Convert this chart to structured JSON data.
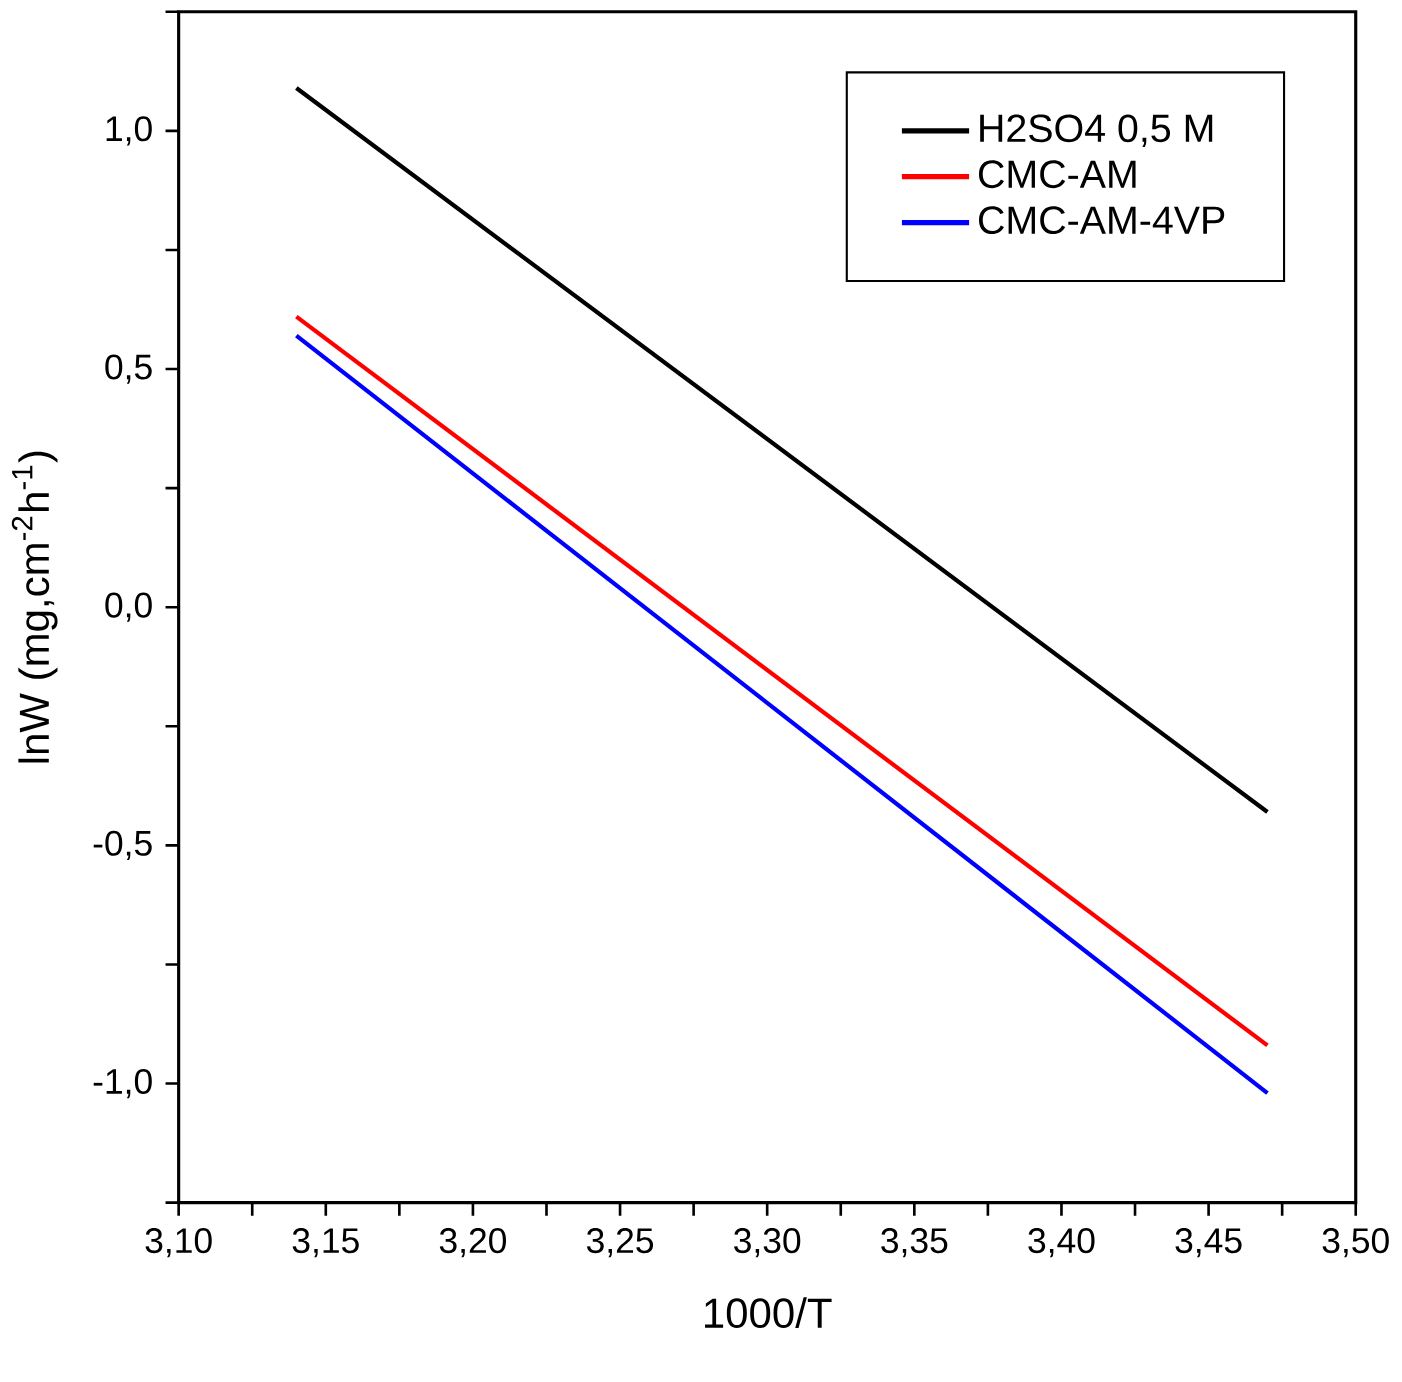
{
  "chart_data": {
    "type": "line",
    "xlabel": "1000/T",
    "ylabel": "lnW (mg,cm$^{-2}$h$^{-1}$)",
    "x": [
      3.14,
      3.47
    ],
    "series": [
      {
        "name": "H2SO4 0,5 M",
        "color": "#000000",
        "values": [
          1.09,
          -0.43
        ]
      },
      {
        "name": "CMC-AM",
        "color": "#ff0000",
        "values": [
          0.61,
          -0.92
        ]
      },
      {
        "name": "CMC-AM-4VP",
        "color": "#0000ff",
        "values": [
          0.57,
          -1.02
        ]
      }
    ],
    "xlim": [
      3.1,
      3.5
    ],
    "xticks": [
      {
        "value": 3.1,
        "label": "3,10"
      },
      {
        "value": 3.125,
        "label": null
      },
      {
        "value": 3.15,
        "label": "3,15"
      },
      {
        "value": 3.175,
        "label": null
      },
      {
        "value": 3.2,
        "label": "3,20"
      },
      {
        "value": 3.225,
        "label": null
      },
      {
        "value": 3.25,
        "label": "3,25"
      },
      {
        "value": 3.275,
        "label": null
      },
      {
        "value": 3.3,
        "label": "3,30"
      },
      {
        "value": 3.325,
        "label": null
      },
      {
        "value": 3.35,
        "label": "3,35"
      },
      {
        "value": 3.375,
        "label": null
      },
      {
        "value": 3.4,
        "label": "3,40"
      },
      {
        "value": 3.425,
        "label": null
      },
      {
        "value": 3.45,
        "label": "3,45"
      },
      {
        "value": 3.475,
        "label": null
      },
      {
        "value": 3.5,
        "label": "3,50"
      }
    ],
    "ylim": [
      -1.25,
      1.25
    ],
    "yticks": [
      {
        "value": -1.25,
        "label": null
      },
      {
        "value": -1.0,
        "label": "-1,0"
      },
      {
        "value": -0.75,
        "label": null
      },
      {
        "value": -0.5,
        "label": "-0,5"
      },
      {
        "value": -0.25,
        "label": null
      },
      {
        "value": 0.0,
        "label": "0,0"
      },
      {
        "value": 0.25,
        "label": null
      },
      {
        "value": 0.5,
        "label": "0,5"
      },
      {
        "value": 0.75,
        "label": null
      },
      {
        "value": 1.0,
        "label": "1,0"
      },
      {
        "value": 1.25,
        "label": null
      }
    ],
    "grid": false,
    "legend": "top right",
    "marker": "none",
    "line_style": "solid"
  }
}
